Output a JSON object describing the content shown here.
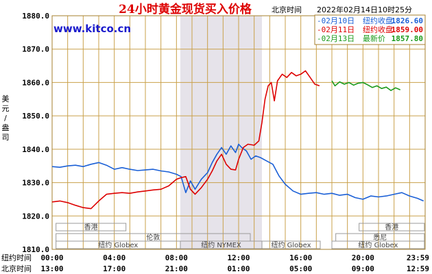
{
  "header": {
    "title": "24小时黄金现货买入价格",
    "timezone_label": "北京时间",
    "timestamp": "2022年02月14日10时25分",
    "watermark": "www.kitco.cn",
    "unit_label": "美元/盎司"
  },
  "legend": [
    {
      "date": "-02月10日",
      "label": "纽约收盘",
      "value": "1826.60",
      "color": "#1a5fd6"
    },
    {
      "date": "-02月11日",
      "label": "纽约收盘",
      "value": "1859.00",
      "color": "#dd0000"
    },
    {
      "date": "-02月13日",
      "label": "最新价",
      "value": "1857.80",
      "color": "#1a9a1a"
    }
  ],
  "x_axis": {
    "row1_label": "纽约时间",
    "row1_ticks": [
      "00:00",
      "04:00",
      "08:00",
      "12:00",
      "16:00",
      "20:00",
      "23:59"
    ],
    "row2_label": "北京时间",
    "row2_ticks": [
      "13:00",
      "17:00",
      "21:00",
      "01:00",
      "05:00",
      "09:00",
      "12:59"
    ]
  },
  "markets": [
    {
      "name": "香港",
      "start": 0.25,
      "end": 4.75,
      "row": 0
    },
    {
      "name": "香港",
      "start": 19.75,
      "end": 23.95,
      "row": 0
    },
    {
      "name": "伦敦",
      "start": 0.25,
      "end": 12.75,
      "row": 1
    },
    {
      "name": "悉尼",
      "start": 18.25,
      "end": 23.95,
      "row": 1
    },
    {
      "name": "纽约 Globex",
      "start": 0.25,
      "end": 8.25,
      "row": 2
    },
    {
      "name": "纽约 NYMEX",
      "start": 8.25,
      "end": 13.5,
      "row": 2
    },
    {
      "name": "纽约 Globex",
      "start": 13.5,
      "end": 17.25,
      "row": 2
    },
    {
      "name": "纽约 Globex",
      "start": 18.0,
      "end": 23.95,
      "row": 2
    }
  ],
  "chart_data": {
    "type": "line",
    "title": "24小时黄金现货买入价格",
    "xlabel": "纽约时间 / 北京时间",
    "ylabel": "美元/盎司",
    "xlim": [
      0,
      24
    ],
    "ylim": [
      1810,
      1880
    ],
    "y_ticks": [
      "1810.0",
      "1820.0",
      "1830.0",
      "1840.0",
      "1850.0",
      "1860.0",
      "1870.0",
      "1880.0"
    ],
    "grid": true,
    "shaded_range": [
      8.25,
      13.5
    ],
    "series": [
      {
        "name": "02月10日",
        "color": "#1a5fd6",
        "x": [
          0,
          0.5,
          1,
          1.5,
          2,
          2.5,
          3,
          3.5,
          4,
          4.5,
          5,
          5.5,
          6,
          6.5,
          7,
          7.5,
          8,
          8.3,
          8.6,
          8.9,
          9.2,
          9.6,
          10,
          10.3,
          10.6,
          10.9,
          11.2,
          11.5,
          11.8,
          12,
          12.2,
          12.5,
          12.8,
          13.1,
          13.4,
          13.8,
          14.2,
          14.6,
          15,
          15.5,
          16,
          16.5,
          17,
          17.5,
          18,
          18.5,
          19,
          19.5,
          20,
          20.5,
          21,
          21.5,
          22,
          22.5,
          23,
          23.5,
          23.9
        ],
        "values": [
          1834.8,
          1834.6,
          1835.0,
          1835.2,
          1834.8,
          1835.5,
          1836.0,
          1835.2,
          1834.0,
          1834.5,
          1834.0,
          1833.6,
          1833.8,
          1834.0,
          1833.5,
          1833.2,
          1832.5,
          1831.8,
          1827.0,
          1830.5,
          1828.0,
          1831.0,
          1833.0,
          1836.0,
          1838.5,
          1840.5,
          1838.5,
          1841.0,
          1839.0,
          1841.5,
          1840.5,
          1839.5,
          1837.0,
          1838.0,
          1837.5,
          1836.5,
          1835.5,
          1832.0,
          1829.5,
          1827.5,
          1826.5,
          1826.8,
          1827.0,
          1826.5,
          1826.8,
          1826.2,
          1826.5,
          1825.5,
          1825.0,
          1826.0,
          1825.7,
          1826.0,
          1826.5,
          1827.0,
          1826.0,
          1825.3,
          1824.5
        ]
      },
      {
        "name": "02月11日",
        "color": "#dd0000",
        "x": [
          0,
          0.5,
          1,
          1.5,
          2,
          2.5,
          3,
          3.5,
          4,
          4.5,
          5,
          5.5,
          6,
          6.5,
          7,
          7.5,
          8,
          8.3,
          8.6,
          8.9,
          9.2,
          9.6,
          10,
          10.3,
          10.6,
          10.9,
          11.2,
          11.5,
          11.8,
          12,
          12.3,
          12.6,
          13,
          13.3,
          13.5,
          13.7,
          13.9,
          14.1,
          14.3,
          14.5,
          14.8,
          15.1,
          15.4,
          15.7,
          16,
          16.3,
          16.6,
          16.9,
          17.2
        ],
        "values": [
          1824.2,
          1824.5,
          1824.0,
          1823.2,
          1822.5,
          1822.2,
          1824.5,
          1826.5,
          1826.8,
          1827.0,
          1826.8,
          1827.2,
          1827.5,
          1827.8,
          1828.0,
          1829.0,
          1831.0,
          1831.5,
          1831.8,
          1828.0,
          1826.5,
          1828.5,
          1831.0,
          1833.5,
          1836.5,
          1838.5,
          1835.5,
          1834.0,
          1833.8,
          1837.0,
          1840.5,
          1841.5,
          1841.2,
          1842.5,
          1848.0,
          1855.0,
          1859.0,
          1860.0,
          1854.5,
          1860.5,
          1862.5,
          1861.5,
          1863.0,
          1862.0,
          1862.5,
          1863.5,
          1861.5,
          1859.5,
          1859.0
        ]
      },
      {
        "name": "02月13日",
        "color": "#1a9a1a",
        "x": [
          18.0,
          18.2,
          18.5,
          18.8,
          19.1,
          19.4,
          19.7,
          20.0,
          20.3,
          20.6,
          20.9,
          21.2,
          21.5,
          21.8,
          22.1,
          22.4
        ],
        "values": [
          1860.5,
          1859.0,
          1860.2,
          1859.5,
          1860.0,
          1859.2,
          1859.8,
          1860.0,
          1859.3,
          1858.5,
          1859.0,
          1858.2,
          1858.6,
          1857.6,
          1858.4,
          1857.8
        ]
      }
    ]
  }
}
